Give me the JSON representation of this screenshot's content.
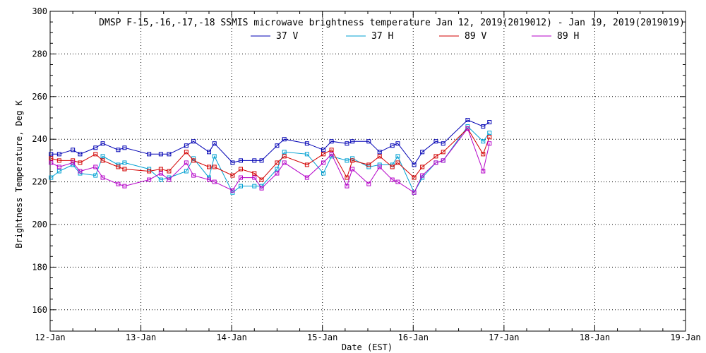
{
  "chart_data": {
    "type": "line",
    "title": "DMSP F-15,-16,-17,-18 SSMIS microwave brightness temperature Jan 12, 2019(2019012) - Jan 19, 2019(2019019)",
    "xlabel": "Date (EST)",
    "ylabel": "Brightness Temperature, Deg K",
    "xlim": [
      0,
      7
    ],
    "ylim": [
      150,
      300
    ],
    "x_ticks": [
      {
        "value": 0,
        "label": "12-Jan"
      },
      {
        "value": 1,
        "label": "13-Jan"
      },
      {
        "value": 2,
        "label": "14-Jan"
      },
      {
        "value": 3,
        "label": "15-Jan"
      },
      {
        "value": 4,
        "label": "16-Jan"
      },
      {
        "value": 5,
        "label": "17-Jan"
      },
      {
        "value": 6,
        "label": "18-Jan"
      },
      {
        "value": 7,
        "label": "19-Jan"
      }
    ],
    "y_ticks": [
      160,
      180,
      200,
      220,
      240,
      260,
      280,
      300
    ],
    "grid": true,
    "legend": "top-center",
    "series": [
      {
        "name": "37 V",
        "color": "#0000b4",
        "points": [
          [
            0.01,
            233
          ],
          [
            0.1,
            233
          ],
          [
            0.25,
            235
          ],
          [
            0.33,
            233
          ],
          [
            0.5,
            236
          ],
          [
            0.58,
            238
          ],
          [
            0.75,
            235
          ],
          [
            0.82,
            236
          ],
          [
            1.09,
            233
          ],
          [
            1.22,
            233
          ],
          [
            1.31,
            233
          ],
          [
            1.5,
            237
          ],
          [
            1.58,
            239
          ],
          [
            1.75,
            234
          ],
          [
            1.81,
            238
          ],
          [
            2.01,
            229
          ],
          [
            2.1,
            230
          ],
          [
            2.25,
            230
          ],
          [
            2.33,
            230
          ],
          [
            2.5,
            237
          ],
          [
            2.58,
            240
          ],
          [
            2.83,
            238
          ],
          [
            3.01,
            235
          ],
          [
            3.1,
            239
          ],
          [
            3.27,
            238
          ],
          [
            3.33,
            239
          ],
          [
            3.51,
            239
          ],
          [
            3.63,
            234
          ],
          [
            3.77,
            237
          ],
          [
            3.83,
            238
          ],
          [
            4.01,
            228
          ],
          [
            4.1,
            234
          ],
          [
            4.25,
            239
          ],
          [
            4.33,
            238
          ],
          [
            4.6,
            249
          ],
          [
            4.77,
            246
          ],
          [
            4.84,
            248
          ]
        ]
      },
      {
        "name": "37 H",
        "color": "#00a0d2",
        "points": [
          [
            0.01,
            222
          ],
          [
            0.1,
            225
          ],
          [
            0.25,
            228
          ],
          [
            0.33,
            224
          ],
          [
            0.5,
            223
          ],
          [
            0.58,
            232
          ],
          [
            0.75,
            228
          ],
          [
            0.82,
            229
          ],
          [
            1.09,
            226
          ],
          [
            1.22,
            221
          ],
          [
            1.31,
            222
          ],
          [
            1.5,
            225
          ],
          [
            1.58,
            231
          ],
          [
            1.75,
            222
          ],
          [
            1.81,
            232
          ],
          [
            2.01,
            215
          ],
          [
            2.1,
            218
          ],
          [
            2.25,
            218
          ],
          [
            2.33,
            218
          ],
          [
            2.5,
            226
          ],
          [
            2.58,
            234
          ],
          [
            2.83,
            233
          ],
          [
            3.01,
            224
          ],
          [
            3.1,
            232
          ],
          [
            3.27,
            230
          ],
          [
            3.33,
            231
          ],
          [
            3.51,
            227
          ],
          [
            3.63,
            228
          ],
          [
            3.77,
            228
          ],
          [
            3.83,
            232
          ],
          [
            4.01,
            215
          ],
          [
            4.1,
            222
          ],
          [
            4.25,
            229
          ],
          [
            4.33,
            230
          ],
          [
            4.6,
            246
          ],
          [
            4.77,
            239
          ],
          [
            4.84,
            243
          ]
        ]
      },
      {
        "name": "89 V",
        "color": "#d20000",
        "points": [
          [
            0.01,
            231
          ],
          [
            0.1,
            230
          ],
          [
            0.25,
            230
          ],
          [
            0.33,
            229
          ],
          [
            0.5,
            233
          ],
          [
            0.58,
            230
          ],
          [
            0.75,
            227
          ],
          [
            0.82,
            226
          ],
          [
            1.09,
            225
          ],
          [
            1.22,
            226
          ],
          [
            1.31,
            225
          ],
          [
            1.5,
            234
          ],
          [
            1.58,
            230
          ],
          [
            1.75,
            227
          ],
          [
            1.81,
            227
          ],
          [
            2.01,
            223
          ],
          [
            2.1,
            226
          ],
          [
            2.25,
            224
          ],
          [
            2.33,
            221
          ],
          [
            2.5,
            229
          ],
          [
            2.58,
            232
          ],
          [
            2.83,
            228
          ],
          [
            3.01,
            233
          ],
          [
            3.1,
            235
          ],
          [
            3.27,
            222
          ],
          [
            3.33,
            230
          ],
          [
            3.51,
            228
          ],
          [
            3.63,
            232
          ],
          [
            3.77,
            227
          ],
          [
            3.83,
            229
          ],
          [
            4.01,
            222
          ],
          [
            4.1,
            227
          ],
          [
            4.25,
            232
          ],
          [
            4.33,
            234
          ],
          [
            4.6,
            245
          ],
          [
            4.77,
            233
          ],
          [
            4.84,
            241
          ]
        ]
      },
      {
        "name": "89 H",
        "color": "#b400c8",
        "points": [
          [
            0.01,
            229
          ],
          [
            0.1,
            227
          ],
          [
            0.25,
            229
          ],
          [
            0.33,
            225
          ],
          [
            0.5,
            227
          ],
          [
            0.58,
            222
          ],
          [
            0.75,
            219
          ],
          [
            0.82,
            218
          ],
          [
            1.09,
            221
          ],
          [
            1.22,
            224
          ],
          [
            1.31,
            221
          ],
          [
            1.5,
            229
          ],
          [
            1.58,
            223
          ],
          [
            1.75,
            221
          ],
          [
            1.81,
            220
          ],
          [
            2.01,
            216
          ],
          [
            2.1,
            222
          ],
          [
            2.25,
            222
          ],
          [
            2.33,
            217
          ],
          [
            2.5,
            224
          ],
          [
            2.58,
            229
          ],
          [
            2.83,
            222
          ],
          [
            3.01,
            229
          ],
          [
            3.1,
            233
          ],
          [
            3.27,
            218
          ],
          [
            3.33,
            226
          ],
          [
            3.51,
            219
          ],
          [
            3.63,
            227
          ],
          [
            3.77,
            221
          ],
          [
            3.83,
            220
          ],
          [
            4.01,
            215
          ],
          [
            4.1,
            223
          ],
          [
            4.25,
            229
          ],
          [
            4.33,
            230
          ],
          [
            4.6,
            245
          ],
          [
            4.77,
            225
          ],
          [
            4.84,
            238
          ]
        ]
      }
    ]
  }
}
